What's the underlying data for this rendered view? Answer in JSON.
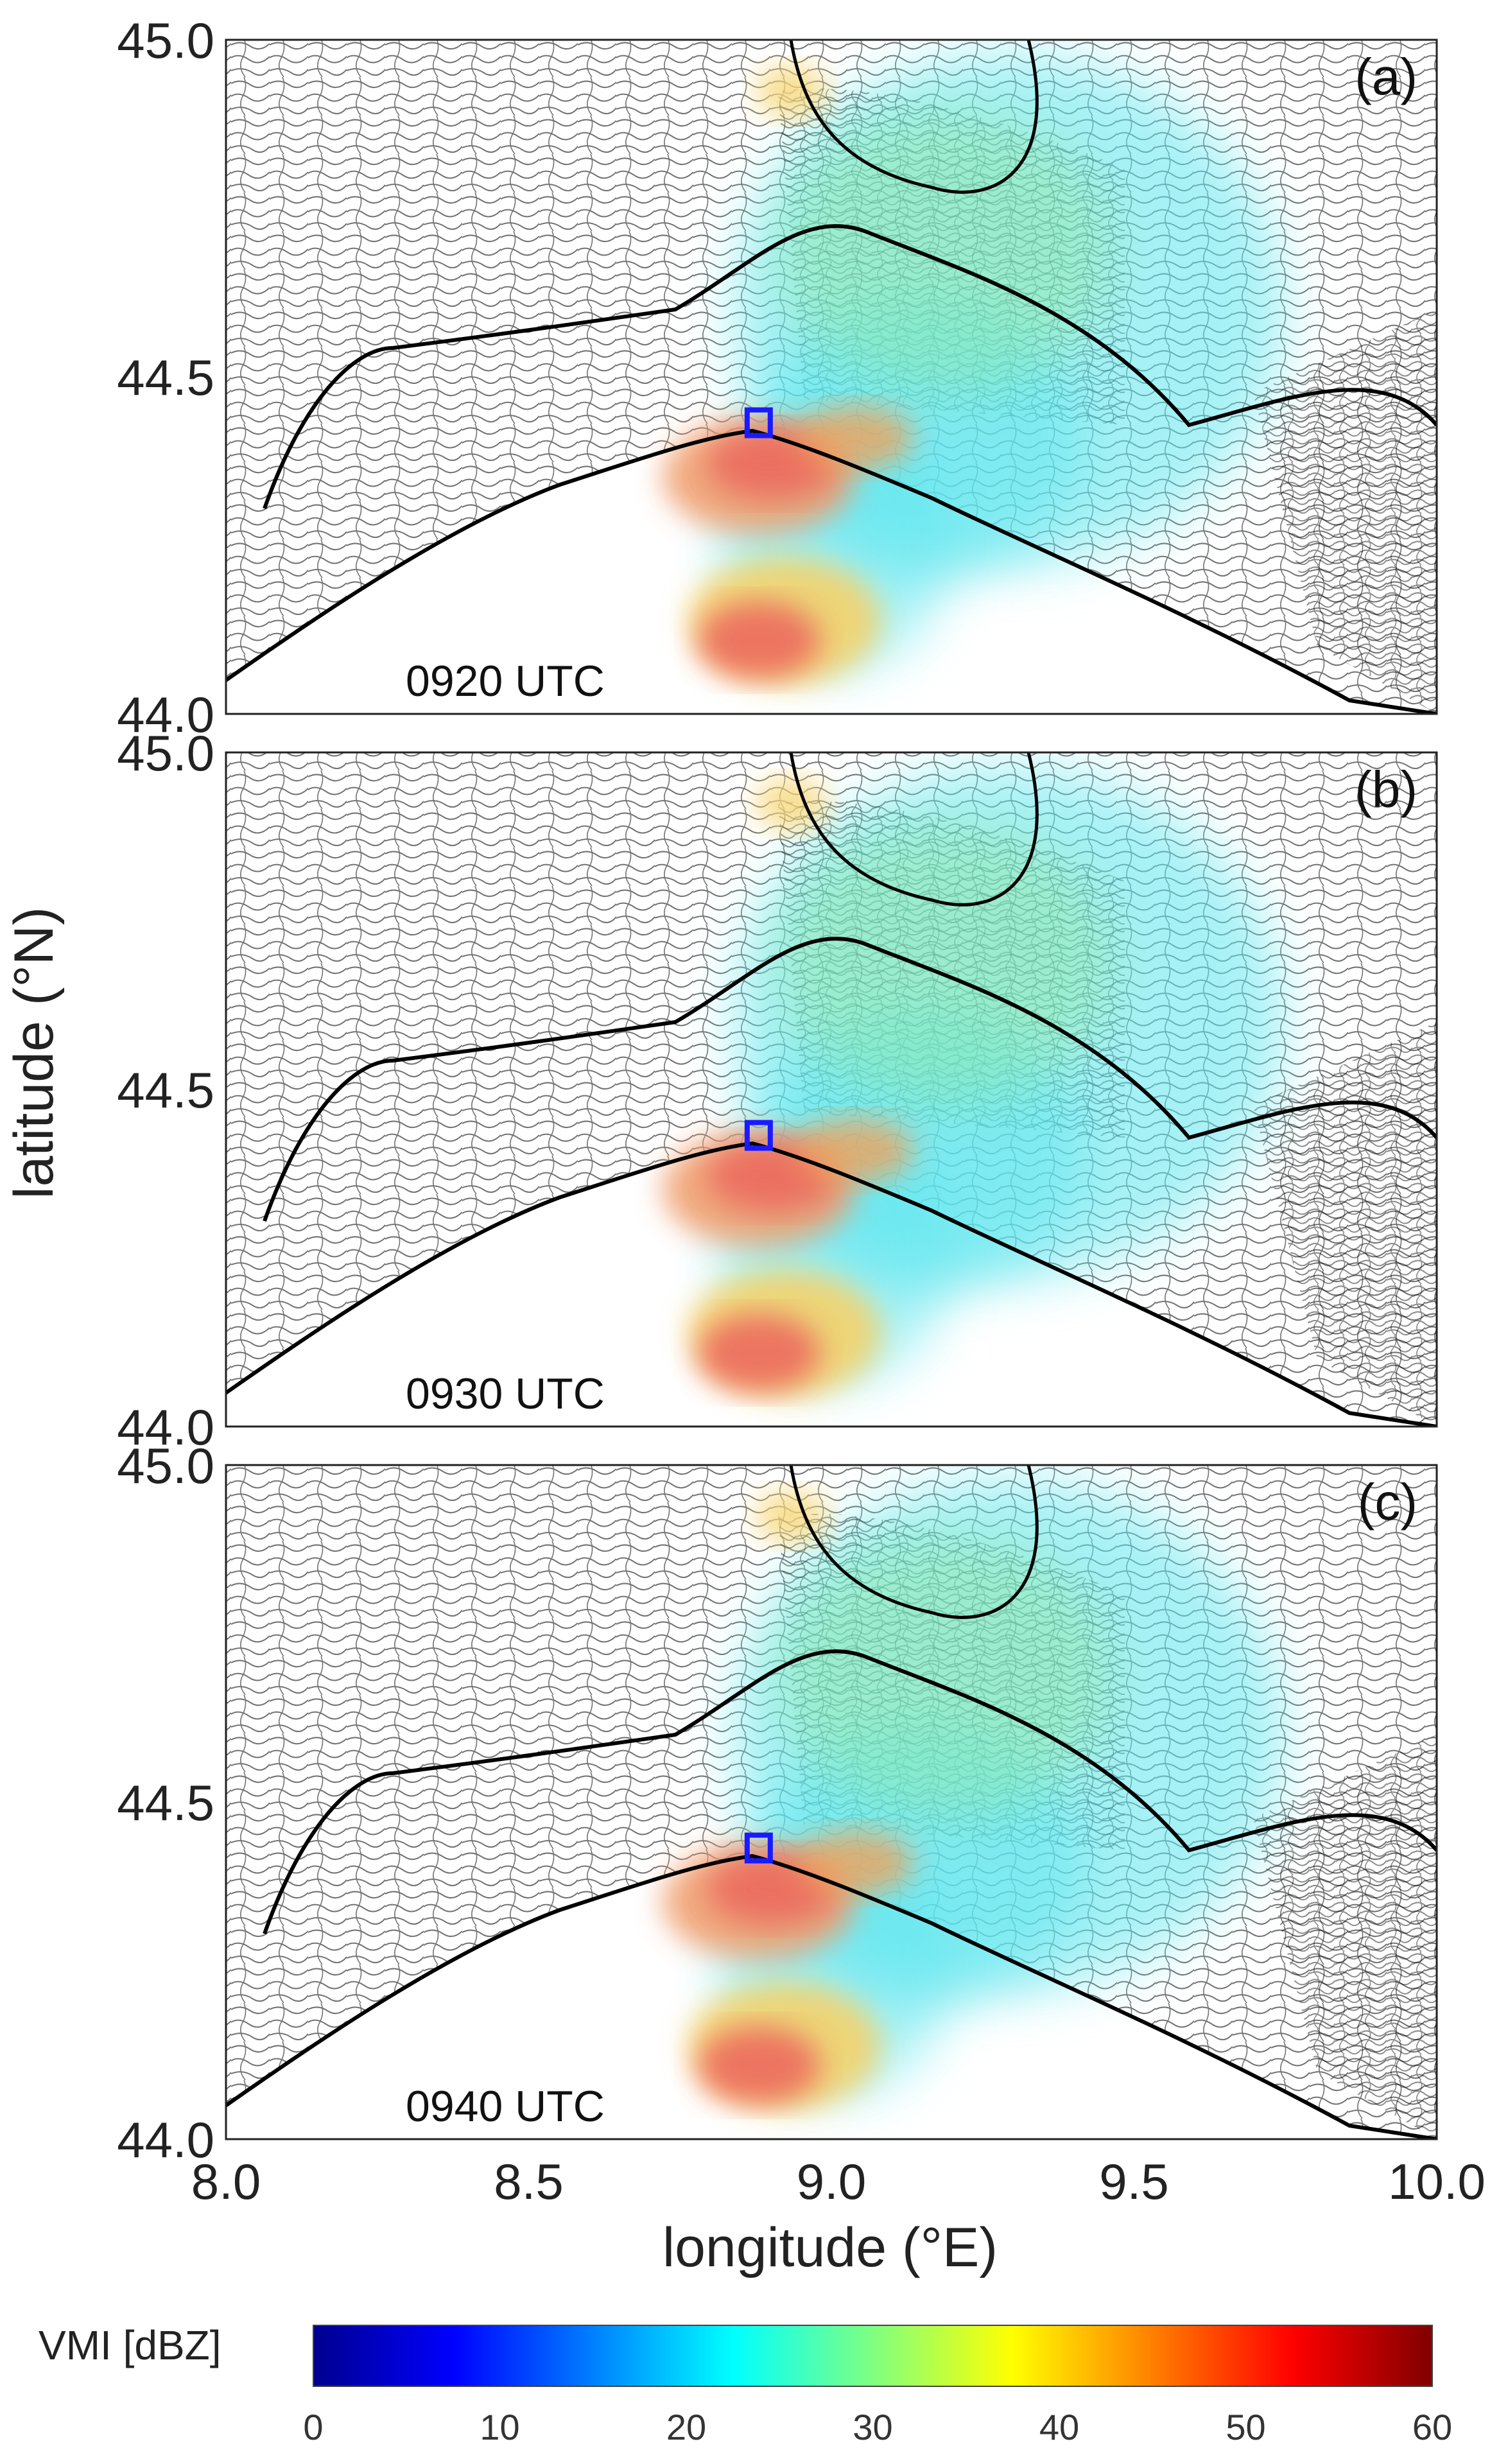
{
  "axes": {
    "ylabel": "latitude (°N)",
    "xlabel": "longitude (°E)",
    "x_ticks": [
      "8.0",
      "8.5",
      "9.0",
      "9.5",
      "10.0"
    ],
    "y_ticks": [
      "44.0",
      "44.5",
      "45.0"
    ],
    "xlim": [
      8.0,
      10.0
    ],
    "ylim": [
      44.0,
      45.0
    ]
  },
  "panels": [
    {
      "label": "(a)",
      "time": "0920 UTC"
    },
    {
      "label": "(b)",
      "time": "0930 UTC"
    },
    {
      "label": "(c)",
      "time": "0940 UTC"
    }
  ],
  "marker": {
    "lon": 8.88,
    "lat": 44.43,
    "color": "#1a1aff",
    "shape": "square"
  },
  "colorbar": {
    "label": "VMI [dBZ]",
    "min": 0,
    "max": 60,
    "ticks": [
      "0",
      "10",
      "20",
      "30",
      "40",
      "50",
      "60"
    ],
    "colormap": "jet"
  },
  "colors": {
    "contour": "#000000",
    "border": "#000000"
  }
}
